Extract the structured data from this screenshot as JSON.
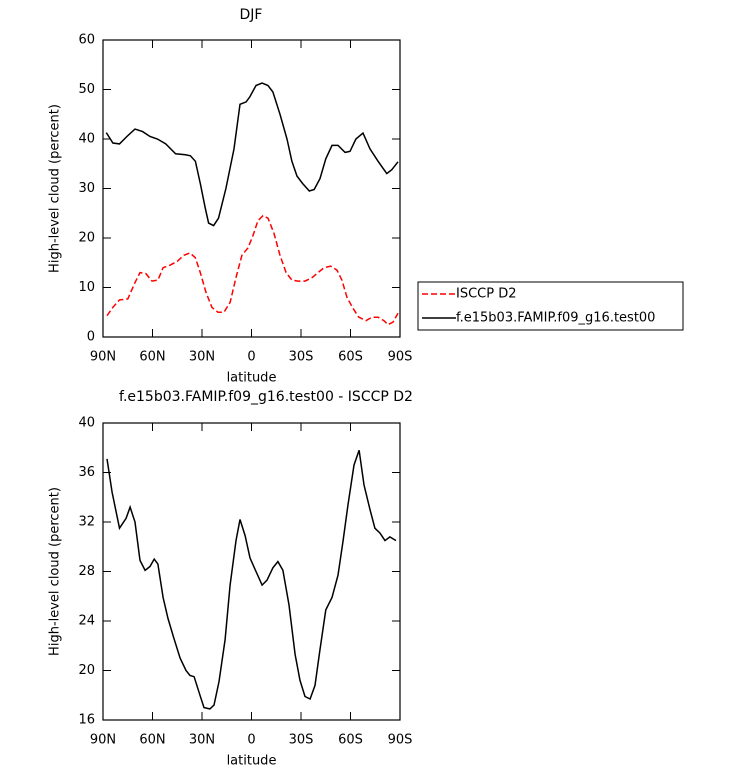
{
  "chart_data": [
    {
      "type": "line",
      "title": "DJF",
      "xlabel": "latitude",
      "ylabel": "High-level cloud (percent)",
      "xlim": [
        90,
        -90
      ],
      "xticks": [
        {
          "value": 90,
          "label": "90N"
        },
        {
          "value": 60,
          "label": "60N"
        },
        {
          "value": 30,
          "label": "30N"
        },
        0,
        {
          "value": -30,
          "label": "30S"
        },
        {
          "value": -60,
          "label": "60S"
        },
        {
          "value": -90,
          "label": "90S"
        }
      ],
      "ylim": [
        0,
        60
      ],
      "yticks": [
        0,
        10,
        20,
        30,
        40,
        50,
        60
      ],
      "legend": "right",
      "series": [
        {
          "name": "ISCCP D2",
          "color": "#ff0000",
          "linestyle": "dashed",
          "x": [
            87.6,
            84,
            80,
            75,
            70.6,
            67.6,
            64,
            60.3,
            56.7,
            53.6,
            49.4,
            45,
            41,
            37.3,
            34,
            31,
            27.6,
            24,
            20.3,
            16.7,
            13,
            9.4,
            5.8,
            2.1,
            -0.9,
            -3.9,
            -7,
            -10,
            -13.6,
            -17.3,
            -21,
            -24.5,
            -28,
            -32.4,
            -36.7,
            -40.3,
            -44,
            -48,
            -51.8,
            -54.8,
            -57.9,
            -61.5,
            -65,
            -69.4,
            -73,
            -76.7,
            -80.3,
            -82.7,
            -85.8,
            -88.8
          ],
          "values": [
            4.3,
            6,
            7.5,
            7.7,
            11,
            13,
            12.8,
            11.3,
            11.5,
            14,
            14.5,
            15.3,
            16.5,
            17,
            16,
            13,
            9,
            6,
            5,
            5,
            7,
            12,
            16.5,
            18,
            20.5,
            23.5,
            24.5,
            24,
            21,
            16.5,
            13,
            11.5,
            11.3,
            11.3,
            12,
            13,
            14,
            14.3,
            13.5,
            11.5,
            8,
            5.8,
            4,
            3.3,
            4,
            4,
            3.3,
            2.5,
            3,
            4.8
          ]
        },
        {
          "name": "f.e15b03.FAMIP.f09_g16.test00",
          "color": "#000000",
          "linestyle": "solid",
          "x": [
            88,
            84,
            80,
            75.5,
            70.6,
            66,
            61.5,
            57,
            52,
            46,
            40,
            37,
            34,
            31,
            28,
            26,
            23,
            20,
            15.5,
            10.6,
            7,
            3.3,
            1,
            -2.7,
            -6.4,
            -10,
            -13,
            -17.3,
            -21.5,
            -24.5,
            -27.6,
            -31,
            -35,
            -38,
            -41.5,
            -45,
            -48.8,
            -52.4,
            -56.7,
            -59.7,
            -63.3,
            -67.6,
            -71.8,
            -76.7,
            -82,
            -85,
            -88.8
          ],
          "values": [
            41.3,
            39.2,
            39,
            40.5,
            42,
            41.5,
            40.5,
            40,
            39,
            37,
            36.8,
            36.6,
            35.5,
            31,
            26,
            23,
            22.5,
            24,
            30,
            38,
            47,
            47.5,
            48.5,
            50.8,
            51.3,
            50.8,
            49.5,
            45,
            40,
            35.5,
            32.5,
            31,
            29.5,
            29.8,
            32,
            36,
            38.7,
            38.7,
            37.3,
            37.5,
            40,
            41.2,
            38,
            35.5,
            33,
            33.8,
            35.4
          ]
        }
      ]
    },
    {
      "type": "line",
      "title": "f.e15b03.FAMIP.f09_g16.test00 - ISCCP D2",
      "xlabel": "latitude",
      "ylabel": "High-level cloud (percent)",
      "xlim": [
        90,
        -90
      ],
      "xticks": [
        {
          "value": 90,
          "label": "90N"
        },
        {
          "value": 60,
          "label": "60N"
        },
        {
          "value": 30,
          "label": "30N"
        },
        0,
        {
          "value": -30,
          "label": "30S"
        },
        {
          "value": -60,
          "label": "60S"
        },
        {
          "value": -90,
          "label": "90S"
        }
      ],
      "ylim": [
        16,
        40
      ],
      "yticks": [
        16,
        20,
        24,
        28,
        32,
        36,
        40
      ],
      "series": [
        {
          "color": "#000000",
          "linestyle": "solid",
          "x": [
            87.6,
            84.5,
            80,
            76,
            73.6,
            70.6,
            67.6,
            64.5,
            61.5,
            59,
            56.7,
            53.6,
            50.6,
            47,
            43.3,
            39.7,
            37.3,
            34.8,
            31.2,
            28.8,
            25.2,
            22.7,
            19.7,
            16,
            13,
            9.4,
            7,
            3.9,
            0.9,
            -2.7,
            -6.4,
            -9.4,
            -13,
            -16,
            -19,
            -22.7,
            -26.4,
            -29.4,
            -32.4,
            -35.5,
            -38.5,
            -41.5,
            -45,
            -48.8,
            -52.4,
            -55.5,
            -58.5,
            -62.1,
            -65.2,
            -68.2,
            -71.8,
            -74.8,
            -77.9,
            -80.9,
            -83.9,
            -87.6
          ],
          "values": [
            37.1,
            34.4,
            31.5,
            32.3,
            33.2,
            32,
            28.9,
            28.1,
            28.4,
            29,
            28.6,
            25.9,
            24.2,
            22.6,
            21,
            20,
            19.6,
            19.5,
            18,
            17,
            16.9,
            17.2,
            19.1,
            22.5,
            26.9,
            30.5,
            32.2,
            30.9,
            29.1,
            28,
            26.9,
            27.3,
            28.3,
            28.8,
            28.1,
            25.3,
            21.3,
            19.2,
            17.9,
            17.7,
            18.8,
            21.7,
            24.9,
            25.9,
            27.7,
            30.5,
            33.4,
            36.6,
            37.8,
            35,
            33,
            31.5,
            31.1,
            30.5,
            30.8,
            30.5
          ]
        }
      ]
    }
  ]
}
